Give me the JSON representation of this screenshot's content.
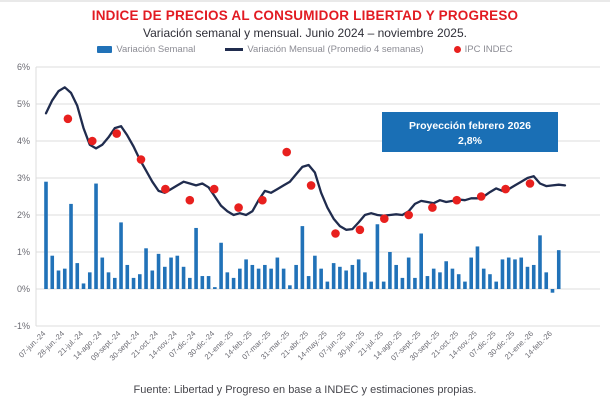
{
  "title": "INDICE DE PRECIOS AL CONSUMIDOR LIBERTAD Y PROGRESO",
  "subtitle": "Variación semanal y mensual. Junio 2024 – noviembre 2025.",
  "footer": "Fuente: Libertad y Progreso en base a INDEC y estimaciones propias.",
  "colors": {
    "title_red": "#e21b22",
    "bar_blue": "#2172b8",
    "line_navy": "#202c4e",
    "dot_red": "#e8201e",
    "projection_blue": "#1a6fb5",
    "grid_gray": "#dcdcdc",
    "axis_label_gray": "#6b6b73"
  },
  "legend": {
    "items": [
      {
        "label": "Variación Semanal",
        "marker": "bar",
        "color": "#2172b8"
      },
      {
        "label": "Variación Mensual (Promedio 4 semanas)",
        "marker": "line",
        "color": "#202c4e"
      },
      {
        "label": "IPC INDEC",
        "marker": "dot",
        "color": "#e8201e"
      }
    ]
  },
  "annotation": {
    "line1": "Proyección febrero 2026",
    "line2": "2,8%"
  },
  "chart_data": {
    "type": "bar",
    "title": "Variación semanal y mensual del IPC",
    "xlabel": "",
    "ylabel": "",
    "ylim": [
      -1,
      6
    ],
    "grid": true,
    "legend_position": "top",
    "y_ticks": [
      "6%",
      "5%",
      "4%",
      "3%",
      "2%",
      "1%",
      "0%",
      "-1%"
    ],
    "x_labels": [
      "07-jun.-24",
      "28-jun.-24",
      "21-jul.-24",
      "14-ago.-24",
      "09-sept.-24",
      "30-sept.-24",
      "21-oct.-24",
      "14-nov.-24",
      "07-dic.-24",
      "30-dic.-24",
      "21-ene.-25",
      "14-feb.-25",
      "07-mar.-25",
      "31-mar.-25",
      "21-abr.-25",
      "14-may.-25",
      "07-jun.-25",
      "30-jun.-25",
      "21-jul.-25",
      "14-ago.-25",
      "07-sept.-25",
      "30-sept.-25",
      "21-oct.-25",
      "14-nov.-25",
      "07-dic.-25",
      "30-dic.-25",
      "21-ene.-26",
      "14-feb.-26"
    ],
    "label_every_n_bars": 3,
    "series": [
      {
        "name": "Variación Semanal",
        "type": "bar",
        "color": "#2172b8",
        "values": [
          2.9,
          0.9,
          0.5,
          0.55,
          2.3,
          0.7,
          0.15,
          0.45,
          2.85,
          0.85,
          0.45,
          0.3,
          1.8,
          0.65,
          0.3,
          0.4,
          1.1,
          0.5,
          0.95,
          0.6,
          0.85,
          0.9,
          0.6,
          0.3,
          1.65,
          0.35,
          0.35,
          0.05,
          1.25,
          0.45,
          0.3,
          0.55,
          0.8,
          0.65,
          0.55,
          0.65,
          0.55,
          0.85,
          0.55,
          0.1,
          0.65,
          1.7,
          0.35,
          0.9,
          0.55,
          0.2,
          0.7,
          0.6,
          0.5,
          0.65,
          0.8,
          0.45,
          0.2,
          1.75,
          0.2,
          1.0,
          0.65,
          0.3,
          0.85,
          0.3,
          1.5,
          0.35,
          0.55,
          0.45,
          0.75,
          0.55,
          0.4,
          0.2,
          0.85,
          1.15,
          0.55,
          0.4,
          0.2,
          0.8,
          0.85,
          0.8,
          0.85,
          0.6,
          0.65,
          1.45,
          0.45,
          -0.1,
          1.05
        ]
      },
      {
        "name": "Variación Mensual (Promedio 4 semanas)",
        "type": "line",
        "color": "#202c4e",
        "values": [
          4.75,
          5.1,
          5.35,
          5.45,
          5.3,
          4.95,
          4.35,
          3.9,
          3.8,
          3.9,
          4.1,
          4.35,
          4.4,
          4.15,
          3.85,
          3.5,
          3.2,
          2.9,
          2.65,
          2.6,
          2.7,
          2.8,
          2.9,
          2.85,
          2.8,
          2.85,
          2.75,
          2.5,
          2.25,
          2.1,
          2.0,
          2.05,
          2.0,
          2.1,
          2.4,
          2.65,
          2.6,
          2.7,
          2.8,
          2.9,
          3.1,
          3.3,
          3.35,
          3.15,
          2.6,
          2.2,
          1.9,
          1.7,
          1.6,
          1.62,
          1.8,
          2.0,
          2.05,
          2.0,
          1.98,
          2.0,
          2.02,
          2.0,
          2.1,
          2.3,
          2.38,
          2.35,
          2.32,
          2.4,
          2.35,
          2.38,
          2.42,
          2.4,
          2.45,
          2.45,
          2.5,
          2.62,
          2.72,
          2.65,
          2.7,
          2.8,
          2.9,
          3.0,
          3.05,
          2.85,
          2.78,
          2.8,
          2.82,
          2.8
        ]
      },
      {
        "name": "IPC INDEC",
        "type": "scatter",
        "color": "#e8201e",
        "points": [
          {
            "month": "jun.-24",
            "week": 3.5,
            "value": 4.6
          },
          {
            "month": "jul.-24",
            "week": 7.4,
            "value": 4.0
          },
          {
            "month": "ago.-24",
            "week": 11.3,
            "value": 4.2
          },
          {
            "month": "sept.-24",
            "week": 15.2,
            "value": 3.5
          },
          {
            "month": "oct.-24",
            "week": 19.1,
            "value": 2.7
          },
          {
            "month": "nov.-24",
            "week": 23.0,
            "value": 2.4
          },
          {
            "month": "dic.-24",
            "week": 26.9,
            "value": 2.7
          },
          {
            "month": "ene.-25",
            "week": 30.8,
            "value": 2.2
          },
          {
            "month": "feb.-25",
            "week": 34.6,
            "value": 2.4
          },
          {
            "month": "mar.-25",
            "week": 38.5,
            "value": 3.7
          },
          {
            "month": "abr.-25",
            "week": 42.4,
            "value": 2.8
          },
          {
            "month": "may.-25",
            "week": 46.3,
            "value": 1.5
          },
          {
            "month": "jun.-25",
            "week": 50.2,
            "value": 1.6
          },
          {
            "month": "jul.-25",
            "week": 54.1,
            "value": 1.9
          },
          {
            "month": "ago.-25",
            "week": 58.0,
            "value": 2.0
          },
          {
            "month": "sept.-25",
            "week": 61.8,
            "value": 2.2
          },
          {
            "month": "oct.-25",
            "week": 65.7,
            "value": 2.4
          },
          {
            "month": "nov.-25",
            "week": 69.6,
            "value": 2.5
          },
          {
            "month": "dic.-25",
            "week": 73.5,
            "value": 2.7
          },
          {
            "month": "ene.-26",
            "week": 77.4,
            "value": 2.85
          }
        ]
      }
    ],
    "annotation": {
      "text": "Proyección febrero 2026",
      "value": "2,8%"
    }
  }
}
